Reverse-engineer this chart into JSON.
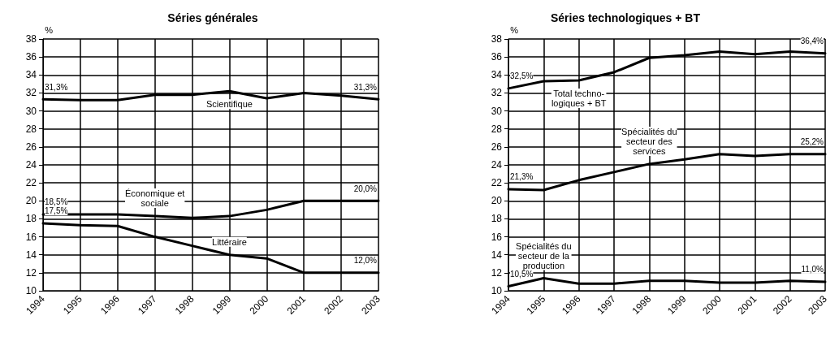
{
  "chart_data": [
    {
      "type": "line",
      "title": "Séries générales",
      "ylabel": "%",
      "categories": [
        "1994",
        "1995",
        "1996",
        "1997",
        "1998",
        "1999",
        "2000",
        "2001",
        "2002",
        "2003"
      ],
      "series": [
        {
          "name": "Scientifique",
          "color": "#000000",
          "values": [
            31.3,
            31.2,
            31.2,
            31.8,
            31.8,
            32.2,
            31.4,
            32.0,
            31.7,
            31.3
          ],
          "value_labels": [
            "31,3%",
            null,
            null,
            null,
            null,
            null,
            null,
            null,
            null,
            "31,3%"
          ]
        },
        {
          "name": "Économique et\nsociale",
          "color": "#000000",
          "values": [
            18.5,
            18.5,
            18.5,
            18.3,
            18.1,
            18.3,
            19.0,
            20.0,
            20.0,
            20.0
          ],
          "value_labels": [
            "18,5%",
            null,
            null,
            null,
            null,
            null,
            null,
            null,
            null,
            "20,0%"
          ]
        },
        {
          "name": "Littéraire",
          "color": "#000000",
          "values": [
            17.5,
            17.3,
            17.2,
            16.0,
            15.0,
            14.0,
            13.6,
            12.0,
            12.0,
            12.0
          ],
          "value_labels": [
            "17,5%",
            null,
            null,
            null,
            null,
            null,
            null,
            null,
            null,
            "12,0%"
          ]
        }
      ],
      "ylim": [
        10,
        38
      ],
      "yticks": [
        10,
        12,
        14,
        16,
        18,
        20,
        22,
        24,
        26,
        28,
        30,
        32,
        34,
        36,
        38
      ],
      "grid": true,
      "legend": false,
      "marker": "none",
      "line_style": "solid"
    },
    {
      "type": "line",
      "title": "Séries technologiques + BT",
      "ylabel": "%",
      "categories": [
        "1994",
        "1995",
        "1996",
        "1997",
        "1998",
        "1999",
        "2000",
        "2001",
        "2002",
        "2003"
      ],
      "series": [
        {
          "name": "Total techno-\nlogiques + BT",
          "color": "#000000",
          "values": [
            32.5,
            33.3,
            33.4,
            34.3,
            35.9,
            36.2,
            36.6,
            36.3,
            36.6,
            36.4
          ],
          "value_labels": [
            "32,5%",
            null,
            null,
            null,
            null,
            null,
            null,
            null,
            null,
            "36,4%"
          ]
        },
        {
          "name": "Spécialités du\nsecteur des\nservices",
          "color": "#000000",
          "values": [
            21.3,
            21.2,
            22.3,
            23.2,
            24.1,
            24.6,
            25.2,
            25.0,
            25.2,
            25.2
          ],
          "value_labels": [
            "21,3%",
            null,
            null,
            null,
            null,
            null,
            null,
            null,
            null,
            "25,2%"
          ]
        },
        {
          "name": "Spécialités du\nsecteur de la\nproduction",
          "color": "#000000",
          "values": [
            10.5,
            11.4,
            10.8,
            10.8,
            11.1,
            11.1,
            10.9,
            10.9,
            11.1,
            11.0
          ],
          "value_labels": [
            "10,5%",
            null,
            null,
            null,
            null,
            null,
            null,
            null,
            null,
            "11,0%"
          ]
        }
      ],
      "ylim": [
        10,
        38
      ],
      "yticks": [
        10,
        12,
        14,
        16,
        18,
        20,
        22,
        24,
        26,
        28,
        30,
        32,
        34,
        36,
        38
      ],
      "grid": true,
      "legend": false,
      "marker": "none",
      "line_style": "solid"
    }
  ]
}
